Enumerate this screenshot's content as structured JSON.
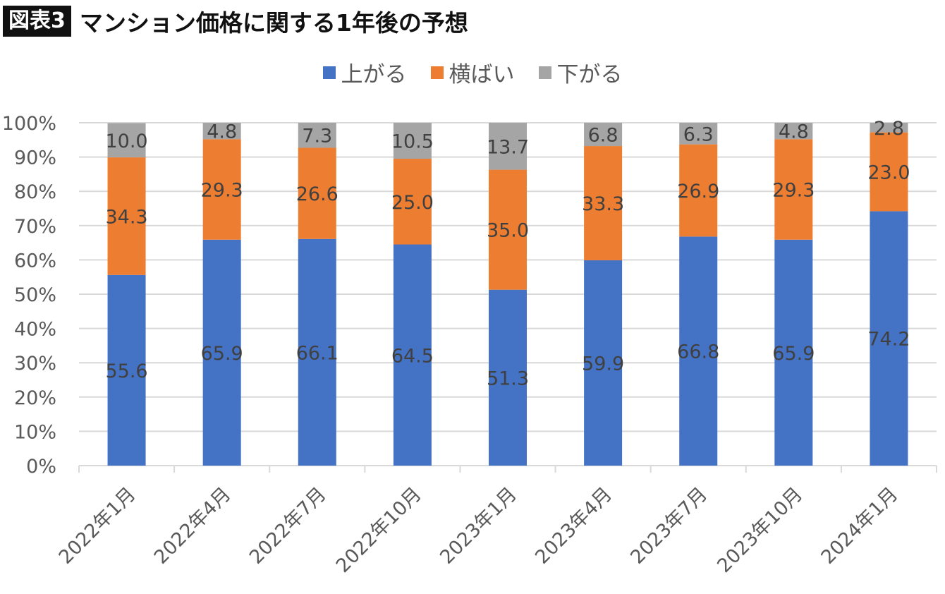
{
  "header": {
    "badge": "図表3",
    "title": "マンション価格に関する1年後の予想"
  },
  "chart_data": {
    "type": "bar",
    "stacked": true,
    "categories": [
      "2022年1月",
      "2022年4月",
      "2022年7月",
      "2022年10月",
      "2023年1月",
      "2023年4月",
      "2023年7月",
      "2023年10月",
      "2024年1月"
    ],
    "series": [
      {
        "name": "上がる",
        "color": "#4472C4",
        "values": [
          55.6,
          65.9,
          66.1,
          64.5,
          51.3,
          59.9,
          66.8,
          65.9,
          74.2
        ],
        "labels": [
          "55.6",
          "65.9",
          "66.1",
          "64.5",
          "51.3",
          "59.9",
          "66.8",
          "65.9",
          "74.2"
        ]
      },
      {
        "name": "横ばい",
        "color": "#ED7D31",
        "values": [
          34.3,
          29.3,
          26.6,
          25.0,
          35.0,
          33.3,
          26.9,
          29.3,
          23.0
        ],
        "labels": [
          "34.3",
          "29.3",
          "26.6",
          "25.0",
          "35.0",
          "33.3",
          "26.9",
          "29.3",
          "23.0"
        ]
      },
      {
        "name": "下がる",
        "color": "#A5A5A5",
        "values": [
          10.0,
          4.8,
          7.3,
          10.5,
          13.7,
          6.8,
          6.3,
          4.8,
          2.8
        ],
        "labels": [
          "10.0",
          "4.8",
          "7.3",
          "10.5",
          "13.7",
          "6.8",
          "6.3",
          "4.8",
          "2.8"
        ]
      }
    ],
    "y_ticks": [
      "0%",
      "10%",
      "20%",
      "30%",
      "40%",
      "50%",
      "60%",
      "70%",
      "80%",
      "90%",
      "100%"
    ],
    "ylim": [
      0,
      100
    ],
    "grid": true,
    "legend": "top-center"
  }
}
